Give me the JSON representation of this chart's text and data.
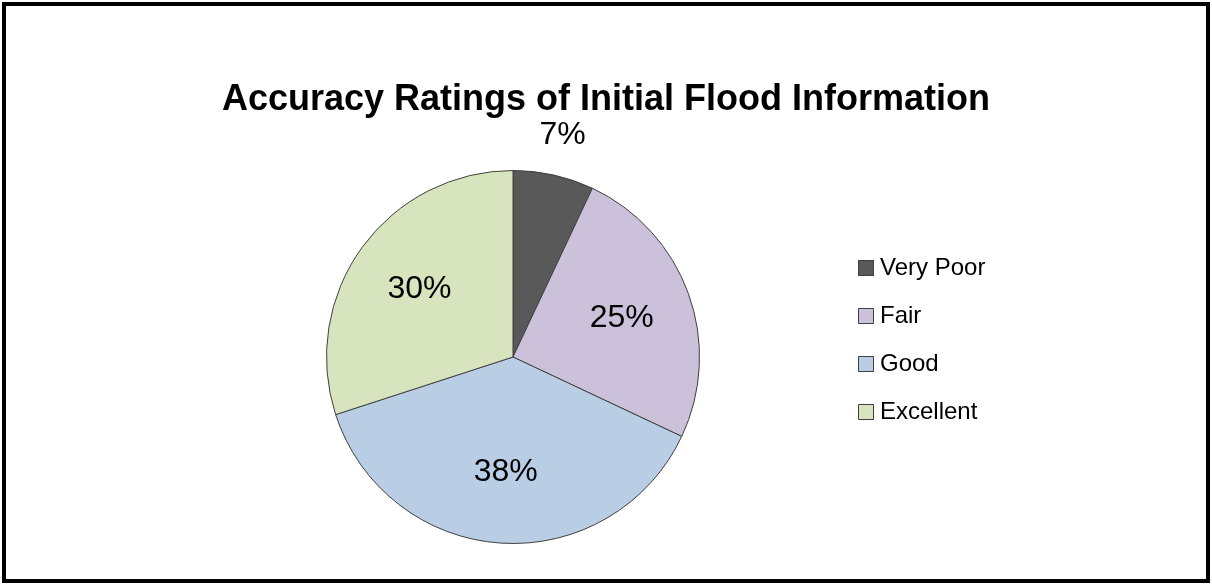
{
  "chart_data": {
    "type": "pie",
    "title": "Accuracy Ratings of Initial Flood Information",
    "categories": [
      "Very Poor",
      "Fair",
      "Good",
      "Excellent"
    ],
    "values": [
      7,
      25,
      38,
      30
    ],
    "colors": [
      "#595959",
      "#ccc1da",
      "#b9cde5",
      "#d7e4bd"
    ],
    "value_labels": [
      "7%",
      "25%",
      "38%",
      "30%"
    ],
    "legend": "right"
  }
}
